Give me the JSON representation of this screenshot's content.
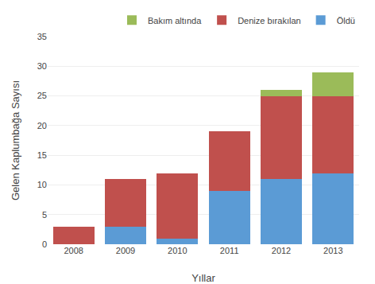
{
  "chart_data": {
    "type": "bar",
    "stacked": true,
    "xlabel": "Yıllar",
    "ylabel": "Gelen Kaplumbağa Sayısı",
    "categories": [
      "2008",
      "2009",
      "2010",
      "2011",
      "2012",
      "2013"
    ],
    "series": [
      {
        "name": "Öldü",
        "color": "#5B9BD5",
        "values": [
          0,
          3,
          1,
          9,
          11,
          12
        ]
      },
      {
        "name": "Denize bırakılan",
        "color": "#C0504D",
        "values": [
          3,
          8,
          11,
          10,
          14,
          13
        ]
      },
      {
        "name": "Bakım altında",
        "color": "#9BBB59",
        "values": [
          0,
          0,
          0,
          0,
          1,
          4
        ]
      }
    ],
    "ylim": [
      0,
      35
    ],
    "yticks": [
      0,
      5,
      10,
      15,
      20,
      25,
      30,
      35
    ],
    "grid": true,
    "legend": "upper right"
  }
}
